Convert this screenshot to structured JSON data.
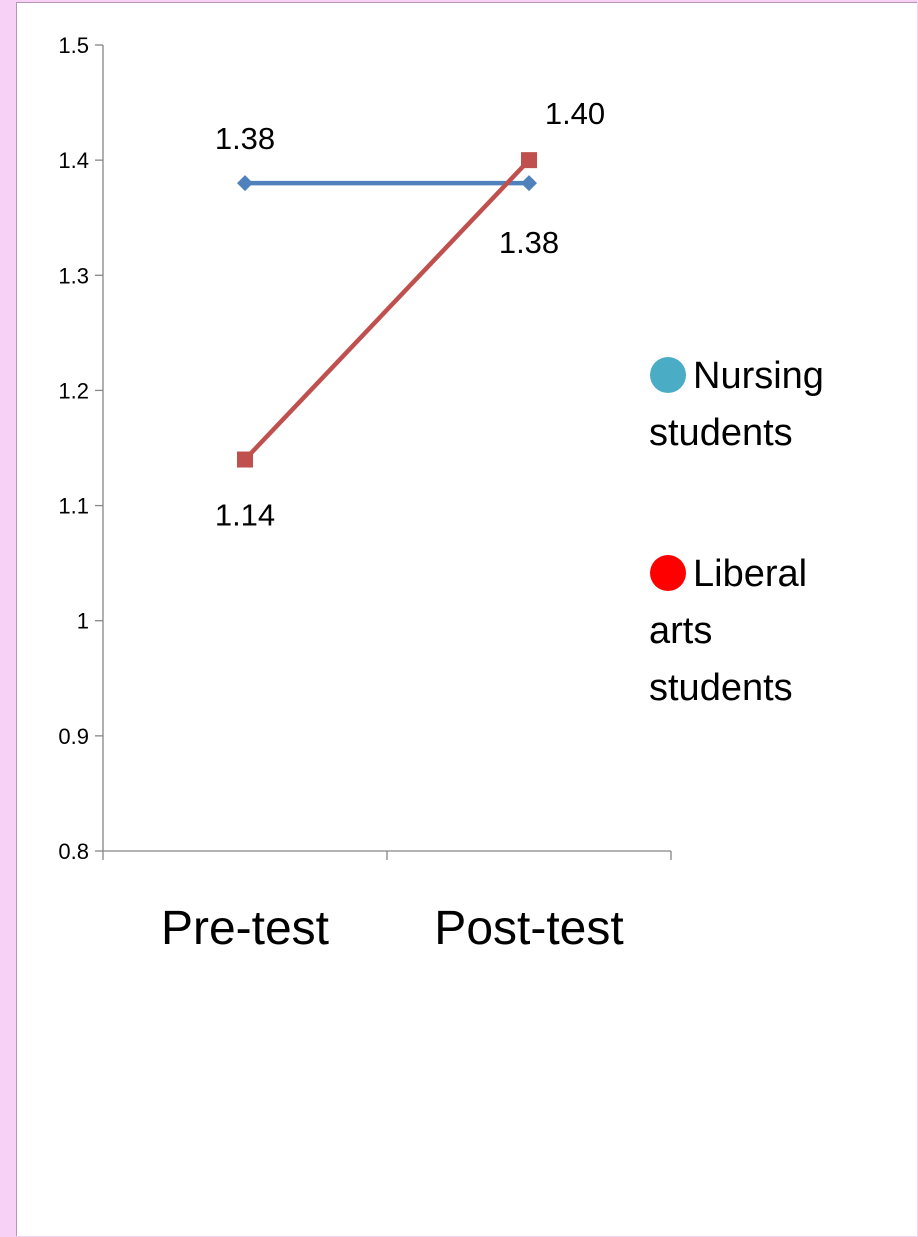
{
  "chart_data": {
    "type": "line",
    "categories": [
      "Pre-test",
      "Post-test"
    ],
    "ylim": [
      0.8,
      1.5
    ],
    "yticks": [
      "0.8",
      "0.9",
      "1",
      "1.1",
      "1.2",
      "1.3",
      "1.4",
      "1.5"
    ],
    "grid": false,
    "legend_position": "right",
    "series": [
      {
        "name": "Nursing students",
        "values": [
          1.38,
          1.38
        ],
        "labels": [
          "1.38",
          "1.38"
        ],
        "color": "#4f81bd",
        "marker": "diamond"
      },
      {
        "name": "Liberal arts students",
        "values": [
          1.14,
          1.4
        ],
        "labels": [
          "1.14",
          "1.40"
        ],
        "color": "#c0504d",
        "marker": "square"
      }
    ],
    "legend": [
      {
        "lines": [
          "Nursing",
          "students"
        ],
        "dot_color": "#4bacc6"
      },
      {
        "lines": [
          "Liberal",
          "arts",
          "students"
        ],
        "dot_color": "#ff0000"
      }
    ]
  }
}
